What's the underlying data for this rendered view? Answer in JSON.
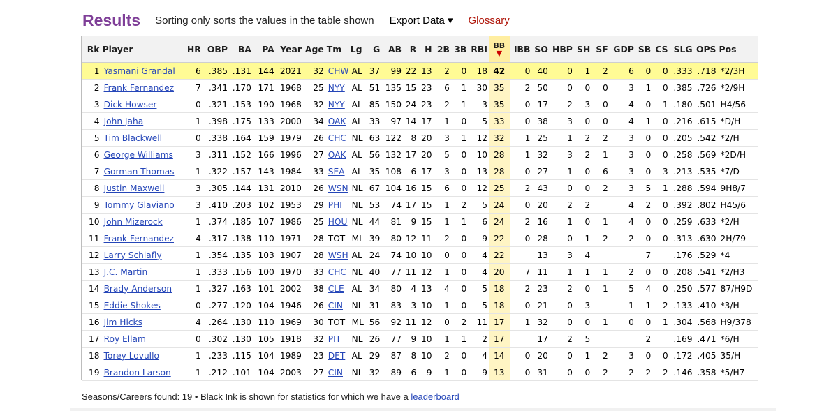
{
  "header": {
    "title": "Results",
    "sort_note": "Sorting only sorts the values in the table shown",
    "export_label": "Export Data ▾",
    "glossary_label": "Glossary",
    "title_color": "#7f3f98",
    "glossary_color": "#b0170b"
  },
  "table": {
    "sorted_column": "BB",
    "columns": [
      "Rk",
      "Player",
      "HR",
      "OBP",
      "BA",
      "PA",
      "Year",
      "Age",
      "Tm",
      "Lg",
      "G",
      "AB",
      "R",
      "H",
      "2B",
      "3B",
      "RBI",
      "BB",
      "IBB",
      "SO",
      "HBP",
      "SH",
      "SF",
      "GDP",
      "SB",
      "CS",
      "SLG",
      "OPS",
      "Pos"
    ],
    "rows": [
      [
        "1",
        "Yasmani Grandal",
        "6",
        ".385",
        ".131",
        "144",
        "2021",
        "32",
        "CHW",
        "AL",
        "37",
        "99",
        "22",
        "13",
        "2",
        "0",
        "18",
        "42",
        "0",
        "40",
        "0",
        "1",
        "2",
        "6",
        "0",
        "0",
        ".333",
        ".718",
        "*2/3H"
      ],
      [
        "2",
        "Frank Fernandez",
        "7",
        ".341",
        ".170",
        "171",
        "1968",
        "25",
        "NYY",
        "AL",
        "51",
        "135",
        "15",
        "23",
        "6",
        "1",
        "30",
        "35",
        "2",
        "50",
        "0",
        "0",
        "0",
        "3",
        "1",
        "0",
        ".385",
        ".726",
        "*2/9H"
      ],
      [
        "3",
        "Dick Howser",
        "0",
        ".321",
        ".153",
        "190",
        "1968",
        "32",
        "NYY",
        "AL",
        "85",
        "150",
        "24",
        "23",
        "2",
        "1",
        "3",
        "35",
        "0",
        "17",
        "2",
        "3",
        "0",
        "4",
        "0",
        "1",
        ".180",
        ".501",
        "H4/56"
      ],
      [
        "4",
        "John Jaha",
        "1",
        ".398",
        ".175",
        "133",
        "2000",
        "34",
        "OAK",
        "AL",
        "33",
        "97",
        "14",
        "17",
        "1",
        "0",
        "5",
        "33",
        "0",
        "38",
        "3",
        "0",
        "0",
        "4",
        "1",
        "0",
        ".216",
        ".615",
        "*D/H"
      ],
      [
        "5",
        "Tim Blackwell",
        "0",
        ".338",
        ".164",
        "159",
        "1979",
        "26",
        "CHC",
        "NL",
        "63",
        "122",
        "8",
        "20",
        "3",
        "1",
        "12",
        "32",
        "1",
        "25",
        "1",
        "2",
        "2",
        "3",
        "0",
        "0",
        ".205",
        ".542",
        "*2/H"
      ],
      [
        "6",
        "George Williams",
        "3",
        ".311",
        ".152",
        "166",
        "1996",
        "27",
        "OAK",
        "AL",
        "56",
        "132",
        "17",
        "20",
        "5",
        "0",
        "10",
        "28",
        "1",
        "32",
        "3",
        "2",
        "1",
        "3",
        "0",
        "0",
        ".258",
        ".569",
        "*2D/H"
      ],
      [
        "7",
        "Gorman Thomas",
        "1",
        ".322",
        ".157",
        "143",
        "1984",
        "33",
        "SEA",
        "AL",
        "35",
        "108",
        "6",
        "17",
        "3",
        "0",
        "13",
        "28",
        "0",
        "27",
        "1",
        "0",
        "6",
        "3",
        "0",
        "3",
        ".213",
        ".535",
        "*7/D"
      ],
      [
        "8",
        "Justin Maxwell",
        "3",
        ".305",
        ".144",
        "131",
        "2010",
        "26",
        "WSN",
        "NL",
        "67",
        "104",
        "16",
        "15",
        "6",
        "0",
        "12",
        "25",
        "2",
        "43",
        "0",
        "0",
        "2",
        "3",
        "5",
        "1",
        ".288",
        ".594",
        "9H8/7"
      ],
      [
        "9",
        "Tommy Glaviano",
        "3",
        ".410",
        ".203",
        "102",
        "1953",
        "29",
        "PHI",
        "NL",
        "53",
        "74",
        "17",
        "15",
        "1",
        "2",
        "5",
        "24",
        "0",
        "20",
        "2",
        "2",
        "",
        "4",
        "2",
        "0",
        ".392",
        ".802",
        "H45/6"
      ],
      [
        "10",
        "John Mizerock",
        "1",
        ".374",
        ".185",
        "107",
        "1986",
        "25",
        "HOU",
        "NL",
        "44",
        "81",
        "9",
        "15",
        "1",
        "1",
        "6",
        "24",
        "2",
        "16",
        "1",
        "0",
        "1",
        "4",
        "0",
        "0",
        ".259",
        ".633",
        "*2/H"
      ],
      [
        "11",
        "Frank Fernandez",
        "4",
        ".317",
        ".138",
        "110",
        "1971",
        "28",
        "TOT",
        "ML",
        "39",
        "80",
        "12",
        "11",
        "2",
        "0",
        "9",
        "22",
        "0",
        "28",
        "0",
        "1",
        "2",
        "2",
        "0",
        "0",
        ".313",
        ".630",
        "2H/79"
      ],
      [
        "12",
        "Larry Schlafly",
        "1",
        ".354",
        ".135",
        "103",
        "1907",
        "28",
        "WSH",
        "AL",
        "24",
        "74",
        "10",
        "10",
        "0",
        "0",
        "4",
        "22",
        "",
        "13",
        "3",
        "4",
        "",
        "",
        "7",
        "",
        ".176",
        ".529",
        "*4"
      ],
      [
        "13",
        "J.C. Martin",
        "1",
        ".333",
        ".156",
        "100",
        "1970",
        "33",
        "CHC",
        "NL",
        "40",
        "77",
        "11",
        "12",
        "1",
        "0",
        "4",
        "20",
        "7",
        "11",
        "1",
        "1",
        "1",
        "2",
        "0",
        "0",
        ".208",
        ".541",
        "*2/H3"
      ],
      [
        "14",
        "Brady Anderson",
        "1",
        ".327",
        ".163",
        "101",
        "2002",
        "38",
        "CLE",
        "AL",
        "34",
        "80",
        "4",
        "13",
        "4",
        "0",
        "5",
        "18",
        "2",
        "23",
        "2",
        "0",
        "1",
        "5",
        "4",
        "0",
        ".250",
        ".577",
        "87/H9D"
      ],
      [
        "15",
        "Eddie Shokes",
        "0",
        ".277",
        ".120",
        "104",
        "1946",
        "26",
        "CIN",
        "NL",
        "31",
        "83",
        "3",
        "10",
        "1",
        "0",
        "5",
        "18",
        "0",
        "21",
        "0",
        "3",
        "",
        "1",
        "1",
        "2",
        ".133",
        ".410",
        "*3/H"
      ],
      [
        "16",
        "Jim Hicks",
        "4",
        ".264",
        ".130",
        "110",
        "1969",
        "30",
        "TOT",
        "ML",
        "56",
        "92",
        "11",
        "12",
        "0",
        "2",
        "11",
        "17",
        "1",
        "32",
        "0",
        "0",
        "1",
        "0",
        "0",
        "1",
        ".304",
        ".568",
        "H9/378"
      ],
      [
        "17",
        "Roy Ellam",
        "0",
        ".302",
        ".130",
        "105",
        "1918",
        "32",
        "PIT",
        "NL",
        "26",
        "77",
        "9",
        "10",
        "1",
        "1",
        "2",
        "17",
        "",
        "17",
        "2",
        "5",
        "",
        "",
        "2",
        "",
        ".169",
        ".471",
        "*6/H"
      ],
      [
        "18",
        "Torey Lovullo",
        "1",
        ".233",
        ".115",
        "104",
        "1989",
        "23",
        "DET",
        "AL",
        "29",
        "87",
        "8",
        "10",
        "2",
        "0",
        "4",
        "14",
        "0",
        "20",
        "0",
        "1",
        "2",
        "3",
        "0",
        "0",
        ".172",
        ".405",
        "35/H"
      ],
      [
        "19",
        "Brandon Larson",
        "1",
        ".212",
        ".101",
        "104",
        "2003",
        "27",
        "CIN",
        "NL",
        "32",
        "89",
        "6",
        "9",
        "1",
        "0",
        "9",
        "13",
        "0",
        "31",
        "0",
        "0",
        "2",
        "2",
        "2",
        "2",
        ".146",
        ".358",
        "*5/H7"
      ]
    ]
  },
  "footer": {
    "text": "Seasons/Careers found: 19 • Black Ink is shown for statistics for which we have a",
    "link_label": "leaderboard"
  }
}
